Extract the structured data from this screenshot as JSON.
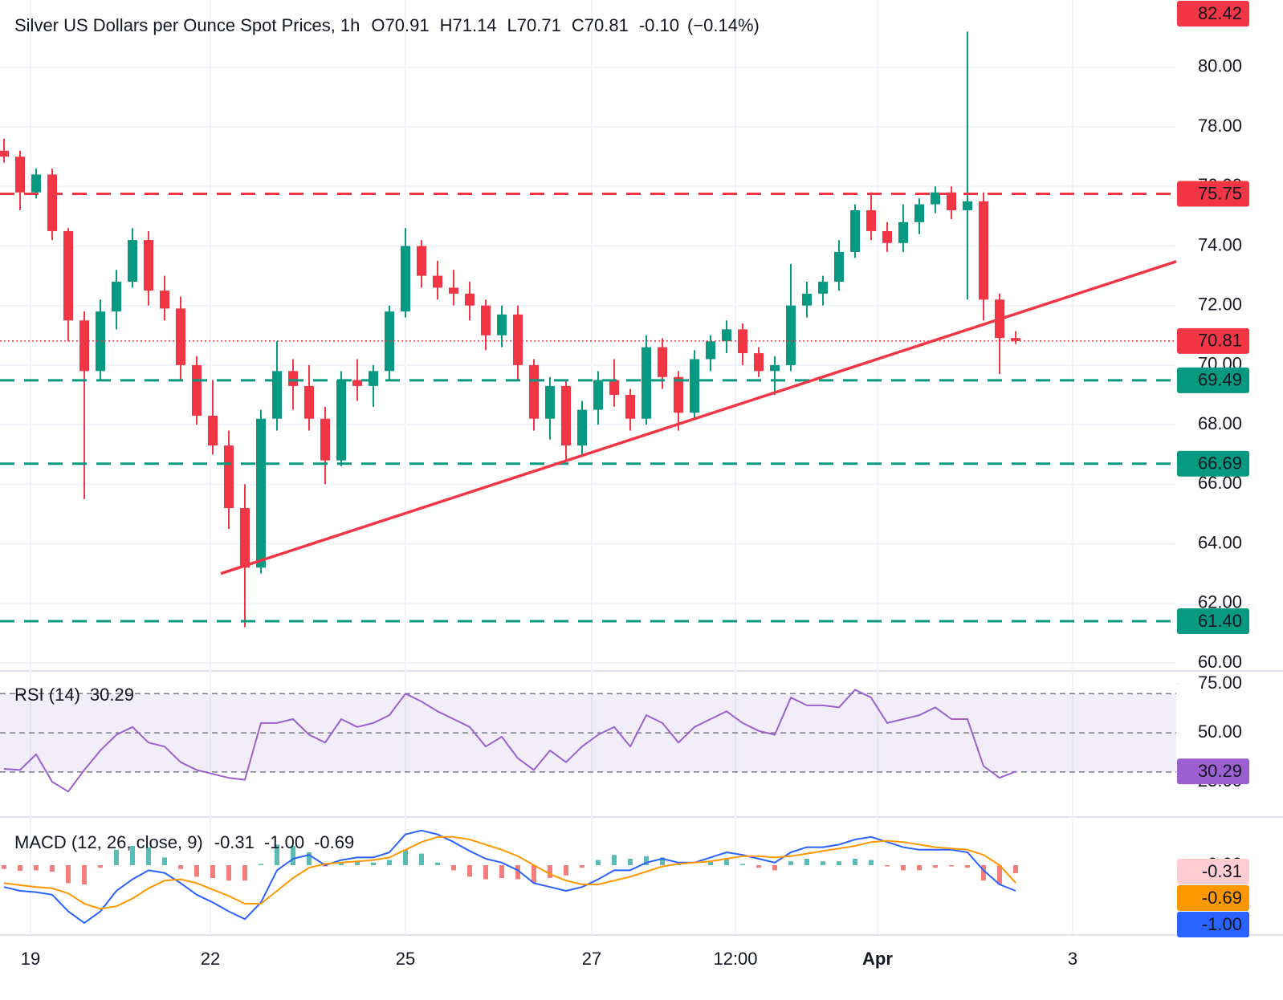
{
  "chart_data": [
    {
      "type": "candlestick",
      "title": "Silver US Dollars per Ounce Spot Prices, 1h",
      "ohlc_labels": [
        "O",
        "H",
        "L",
        "C"
      ],
      "change": "-0.10",
      "change_pct": "(−0.14%)",
      "up_color": "#089981",
      "down_color": "#f23645",
      "xlim": [
        -0.25,
        73
      ],
      "ylim": [
        59.73,
        82.26
      ],
      "yticks": [
        {
          "value": 60,
          "label": "60.00"
        },
        {
          "value": 62,
          "label": "62.00"
        },
        {
          "value": 64,
          "label": "64.00"
        },
        {
          "value": 66,
          "label": "66.00"
        },
        {
          "value": 68,
          "label": "68.00"
        },
        {
          "value": 70,
          "label": "70.00"
        },
        {
          "value": 72,
          "label": "72.00"
        },
        {
          "value": 74,
          "label": "74.00"
        },
        {
          "value": 76,
          "label": "76.00"
        },
        {
          "value": 78,
          "label": "78.00"
        },
        {
          "value": 80,
          "label": "80.00"
        }
      ],
      "grid": true,
      "candles": {
        "open": [
          77.2,
          77.0,
          75.8,
          76.4,
          74.5,
          71.5,
          69.8,
          71.8,
          72.8,
          74.2,
          72.5,
          71.9,
          70.0,
          68.3,
          67.3,
          65.2,
          63.2,
          68.2,
          69.8,
          69.3,
          68.2,
          66.8,
          69.5,
          69.3,
          69.8,
          71.8,
          74.0,
          73.0,
          72.6,
          72.4,
          72.0,
          71.0,
          71.7,
          70.0,
          68.2,
          69.3,
          67.3,
          68.5,
          69.5,
          69.0,
          68.2,
          70.6,
          69.6,
          68.4,
          70.2,
          70.8,
          71.2,
          70.4,
          69.8,
          70.0,
          72.0,
          72.4,
          72.8,
          73.8,
          75.2,
          74.5,
          74.1,
          74.8,
          75.4,
          75.8,
          75.2,
          75.5,
          72.2,
          70.91
        ],
        "high": [
          77.6,
          77.2,
          76.6,
          76.6,
          74.6,
          71.8,
          72.2,
          73.2,
          74.6,
          74.5,
          73.0,
          72.3,
          70.3,
          69.5,
          67.8,
          66.0,
          68.5,
          70.8,
          70.2,
          70.0,
          68.6,
          69.8,
          70.2,
          70.0,
          72.0,
          74.6,
          74.2,
          73.5,
          73.2,
          72.8,
          72.2,
          72.0,
          72.0,
          70.2,
          69.6,
          69.5,
          68.8,
          69.8,
          70.2,
          69.2,
          71.0,
          70.9,
          69.8,
          70.5,
          71.0,
          71.5,
          71.4,
          70.6,
          70.3,
          73.4,
          72.8,
          73.0,
          74.2,
          75.4,
          75.8,
          74.8,
          75.4,
          75.6,
          76.0,
          76.0,
          81.2,
          75.8,
          72.4,
          71.14
        ],
        "low": [
          76.8,
          75.2,
          75.6,
          74.2,
          70.8,
          65.5,
          69.5,
          71.2,
          72.6,
          72.0,
          71.5,
          69.5,
          68.0,
          67.0,
          64.5,
          61.2,
          63.0,
          67.8,
          68.5,
          67.8,
          66.0,
          66.6,
          68.8,
          68.6,
          69.5,
          71.6,
          72.6,
          72.2,
          72.0,
          71.5,
          70.5,
          70.6,
          69.5,
          67.8,
          67.5,
          66.8,
          67.0,
          68.0,
          68.6,
          67.8,
          68.0,
          69.2,
          67.8,
          68.2,
          69.8,
          70.4,
          70.0,
          69.6,
          69.0,
          69.8,
          71.6,
          72.0,
          72.5,
          73.6,
          74.2,
          73.8,
          73.8,
          74.4,
          75.1,
          74.9,
          72.2,
          71.5,
          69.7,
          70.71
        ],
        "close": [
          77.0,
          75.8,
          76.4,
          74.5,
          71.5,
          69.8,
          71.8,
          72.8,
          74.2,
          72.5,
          71.9,
          70.0,
          68.3,
          67.3,
          65.2,
          63.2,
          68.2,
          69.8,
          69.3,
          68.2,
          66.8,
          69.5,
          69.3,
          69.8,
          71.8,
          74.0,
          73.0,
          72.6,
          72.4,
          72.0,
          71.0,
          71.7,
          70.0,
          68.2,
          69.3,
          67.3,
          68.5,
          69.5,
          69.0,
          68.2,
          70.6,
          69.6,
          68.4,
          70.2,
          70.8,
          71.2,
          70.4,
          69.8,
          70.0,
          72.0,
          72.4,
          72.8,
          73.8,
          75.2,
          74.5,
          74.1,
          74.8,
          75.4,
          75.8,
          75.2,
          75.5,
          72.2,
          70.91,
          70.81
        ]
      },
      "last_price_color": "#f23645",
      "levels": [
        {
          "value": 75.75,
          "label": "75.75",
          "color": "#f23645"
        },
        {
          "value": 69.49,
          "label": "69.49",
          "color": "#089981"
        },
        {
          "value": 66.69,
          "label": "66.69",
          "color": "#089981"
        },
        {
          "value": 61.4,
          "label": "61.40",
          "color": "#089981"
        }
      ],
      "price_labels": [
        {
          "value": 82.42,
          "label": "82.42",
          "color": "#f23645"
        }
      ],
      "trendline": {
        "x": [
          13.5,
          73
        ],
        "y": [
          63.0,
          73.48
        ],
        "color": "#f23645"
      }
    },
    {
      "type": "line",
      "title": "RSI (14)",
      "xlim": [
        -0.25,
        73
      ],
      "ylim": [
        7,
        81.6
      ],
      "yticks": [
        {
          "value": 25,
          "label": "25.00"
        },
        {
          "value": 50,
          "label": "50.00"
        },
        {
          "value": 75,
          "label": "75.00"
        }
      ],
      "levels": [
        70,
        50,
        30
      ],
      "band_color": "#7e57c2",
      "series": [
        {
          "name": "RSI",
          "color": "#9c5fd0",
          "values": [
            31.6,
            31,
            39,
            25,
            20,
            31,
            41,
            49,
            53,
            45,
            43,
            35,
            31,
            29,
            27,
            26,
            55,
            55,
            57,
            49,
            45,
            57,
            53,
            55,
            59,
            70,
            66,
            61,
            57,
            53,
            43,
            48,
            37,
            31,
            41,
            35,
            43,
            49,
            53,
            43,
            59,
            55,
            45,
            53,
            57,
            61,
            55,
            51,
            49,
            68,
            64,
            64,
            63,
            72,
            68,
            55,
            57,
            59,
            63,
            57,
            57,
            33,
            27,
            30.29
          ]
        }
      ]
    },
    {
      "type": "macd",
      "title": "MACD (12, 26, close, 9)",
      "xlim": [
        -0.25,
        73
      ],
      "ylim": [
        -2.72,
        1.875
      ],
      "yticks": [
        {
          "value": 0,
          "label": "0.00"
        }
      ],
      "xticks": [
        {
          "value": 1.65,
          "label": "19"
        },
        {
          "value": 12.85,
          "label": "22"
        },
        {
          "value": 25,
          "label": "25"
        },
        {
          "value": 36.6,
          "label": "27"
        },
        {
          "value": 45.55,
          "label": "12:00"
        },
        {
          "value": 54.4,
          "label": "Apr",
          "bold": true
        },
        {
          "value": 66.55,
          "label": "3"
        }
      ],
      "series": [
        {
          "name": "Histogram",
          "color": "#ffcdd2",
          "text_color": "#f7a1ad",
          "box_text_color": "#131722",
          "up_color": "#26a69a",
          "down_color": "#ef5350",
          "last_label": "-0.31",
          "values": [
            -0.15,
            -0.22,
            -0.2,
            -0.25,
            -0.7,
            -0.75,
            -0.1,
            0.6,
            0.75,
            0.7,
            0.3,
            -0.15,
            -0.45,
            -0.5,
            -0.6,
            -0.6,
            0.05,
            0.8,
            0.75,
            0.5,
            -0.05,
            0.1,
            0.15,
            0.1,
            0.2,
            0.6,
            0.45,
            0.1,
            -0.2,
            -0.45,
            -0.55,
            -0.5,
            -0.55,
            -0.7,
            -0.5,
            -0.4,
            -0.1,
            0.2,
            0.4,
            0.25,
            0.35,
            0.3,
            0.05,
            0,
            0.15,
            0.25,
            0.05,
            -0.1,
            -0.2,
            0.15,
            0.25,
            0.15,
            0.15,
            0.25,
            0.2,
            -0.05,
            -0.2,
            -0.2,
            -0.1,
            -0.05,
            -0.1,
            -0.6,
            -0.75,
            -0.31
          ]
        },
        {
          "name": "MACD",
          "color": "#2962ff",
          "text_color": "#2962ff",
          "box_text_color": "#ffffff",
          "last_label": "-1.00",
          "values": [
            -0.85,
            -1.0,
            -1.05,
            -1.15,
            -1.8,
            -2.25,
            -1.8,
            -1.0,
            -0.55,
            -0.2,
            -0.3,
            -0.7,
            -1.15,
            -1.45,
            -1.8,
            -2.1,
            -1.45,
            -0.2,
            0.25,
            0.4,
            0,
            0.2,
            0.3,
            0.3,
            0.5,
            1.2,
            1.35,
            1.2,
            0.9,
            0.55,
            0.25,
            0.1,
            -0.2,
            -0.7,
            -0.85,
            -1.0,
            -0.85,
            -0.55,
            -0.2,
            -0.2,
            0.1,
            0.25,
            0.1,
            0.1,
            0.3,
            0.5,
            0.4,
            0.25,
            0.1,
            0.5,
            0.7,
            0.7,
            0.8,
            1.0,
            1.1,
            0.9,
            0.7,
            0.6,
            0.6,
            0.6,
            0.5,
            -0.2,
            -0.75,
            -1.0
          ]
        },
        {
          "name": "Signal",
          "color": "#ff9800",
          "text_color": "#ff9800",
          "box_text_color": "#131722",
          "last_label": "-0.69",
          "values": [
            -0.7,
            -0.78,
            -0.85,
            -0.9,
            -1.1,
            -1.5,
            -1.7,
            -1.6,
            -1.3,
            -0.9,
            -0.6,
            -0.55,
            -0.7,
            -0.95,
            -1.2,
            -1.5,
            -1.5,
            -1.0,
            -0.5,
            -0.1,
            0.05,
            0.1,
            0.15,
            0.2,
            0.3,
            0.6,
            0.9,
            1.1,
            1.1,
            1.0,
            0.8,
            0.6,
            0.35,
            0.0,
            -0.35,
            -0.6,
            -0.75,
            -0.75,
            -0.6,
            -0.45,
            -0.25,
            -0.05,
            0.05,
            0.1,
            0.15,
            0.25,
            0.35,
            0.35,
            0.3,
            0.35,
            0.45,
            0.55,
            0.65,
            0.75,
            0.9,
            0.95,
            0.9,
            0.8,
            0.7,
            0.65,
            0.6,
            0.4,
            0.0,
            -0.69
          ]
        }
      ]
    }
  ]
}
